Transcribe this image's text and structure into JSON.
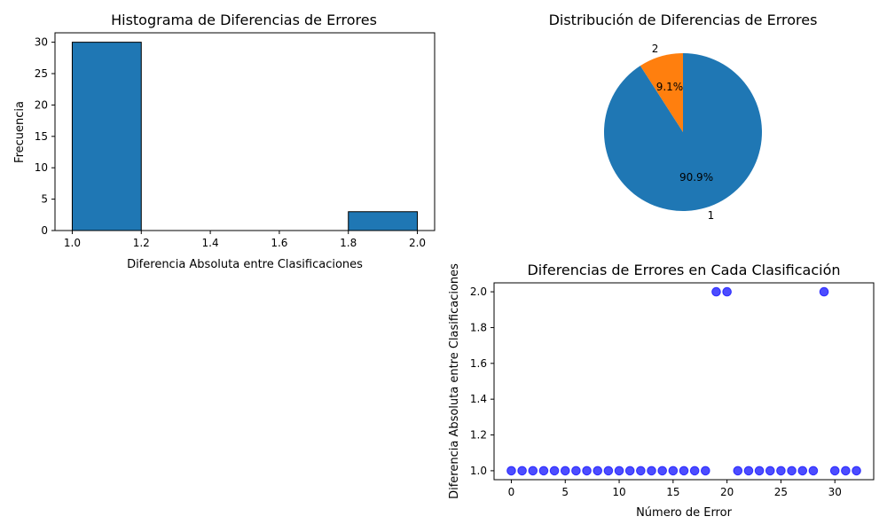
{
  "chart_data": [
    {
      "type": "bar",
      "subtype": "histogram",
      "title": "Histograma de Diferencias de Errores",
      "xlabel": "Diferencia Absoluta entre Clasificaciones",
      "ylabel": "Frecuencia",
      "bins": [
        {
          "start": 1.0,
          "end": 1.2,
          "count": 30
        },
        {
          "start": 1.8,
          "end": 2.0,
          "count": 3
        }
      ],
      "xlim": [
        0.95,
        2.05
      ],
      "ylim": [
        0,
        31.5
      ],
      "xticks": [
        1.0,
        1.2,
        1.4,
        1.6,
        1.8,
        2.0
      ],
      "xtick_labels": [
        "1.0",
        "1.2",
        "1.4",
        "1.6",
        "1.8",
        "2.0"
      ],
      "yticks": [
        0,
        5,
        10,
        15,
        20,
        25,
        30
      ],
      "color": "#1f77b4",
      "edgecolor": "#000000",
      "grid": false
    },
    {
      "type": "pie",
      "title": "Distribución de Diferencias de Errores",
      "labels": [
        "1",
        "2"
      ],
      "values": [
        30,
        3
      ],
      "percent_labels": [
        "90.9%",
        "9.1%"
      ],
      "colors": [
        "#1f77b4",
        "#ff7f0e"
      ],
      "startangle": 90,
      "counterclock": false
    },
    {
      "type": "scatter",
      "title": "Diferencias de Errores en Cada Clasificación",
      "xlabel": "Número de Error",
      "ylabel": "Diferencia Absoluta entre Clasificaciones",
      "x": [
        0,
        1,
        2,
        3,
        4,
        5,
        6,
        7,
        8,
        9,
        10,
        11,
        12,
        13,
        14,
        15,
        16,
        17,
        18,
        19,
        20,
        21,
        22,
        23,
        24,
        25,
        26,
        27,
        28,
        29,
        30,
        31,
        32
      ],
      "y": [
        1,
        1,
        1,
        1,
        1,
        1,
        1,
        1,
        1,
        1,
        1,
        1,
        1,
        1,
        1,
        1,
        1,
        1,
        1,
        2,
        2,
        1,
        1,
        1,
        1,
        1,
        1,
        1,
        1,
        2,
        1,
        1,
        1
      ],
      "xlim": [
        -1.6,
        33.6
      ],
      "ylim": [
        0.95,
        2.05
      ],
      "xticks": [
        0,
        5,
        10,
        15,
        20,
        25,
        30
      ],
      "yticks": [
        1.0,
        1.2,
        1.4,
        1.6,
        1.8,
        2.0
      ],
      "ytick_labels": [
        "1.0",
        "1.2",
        "1.4",
        "1.6",
        "1.8",
        "2.0"
      ],
      "color": "#0000ff",
      "alpha": 0.7,
      "grid": false
    }
  ]
}
